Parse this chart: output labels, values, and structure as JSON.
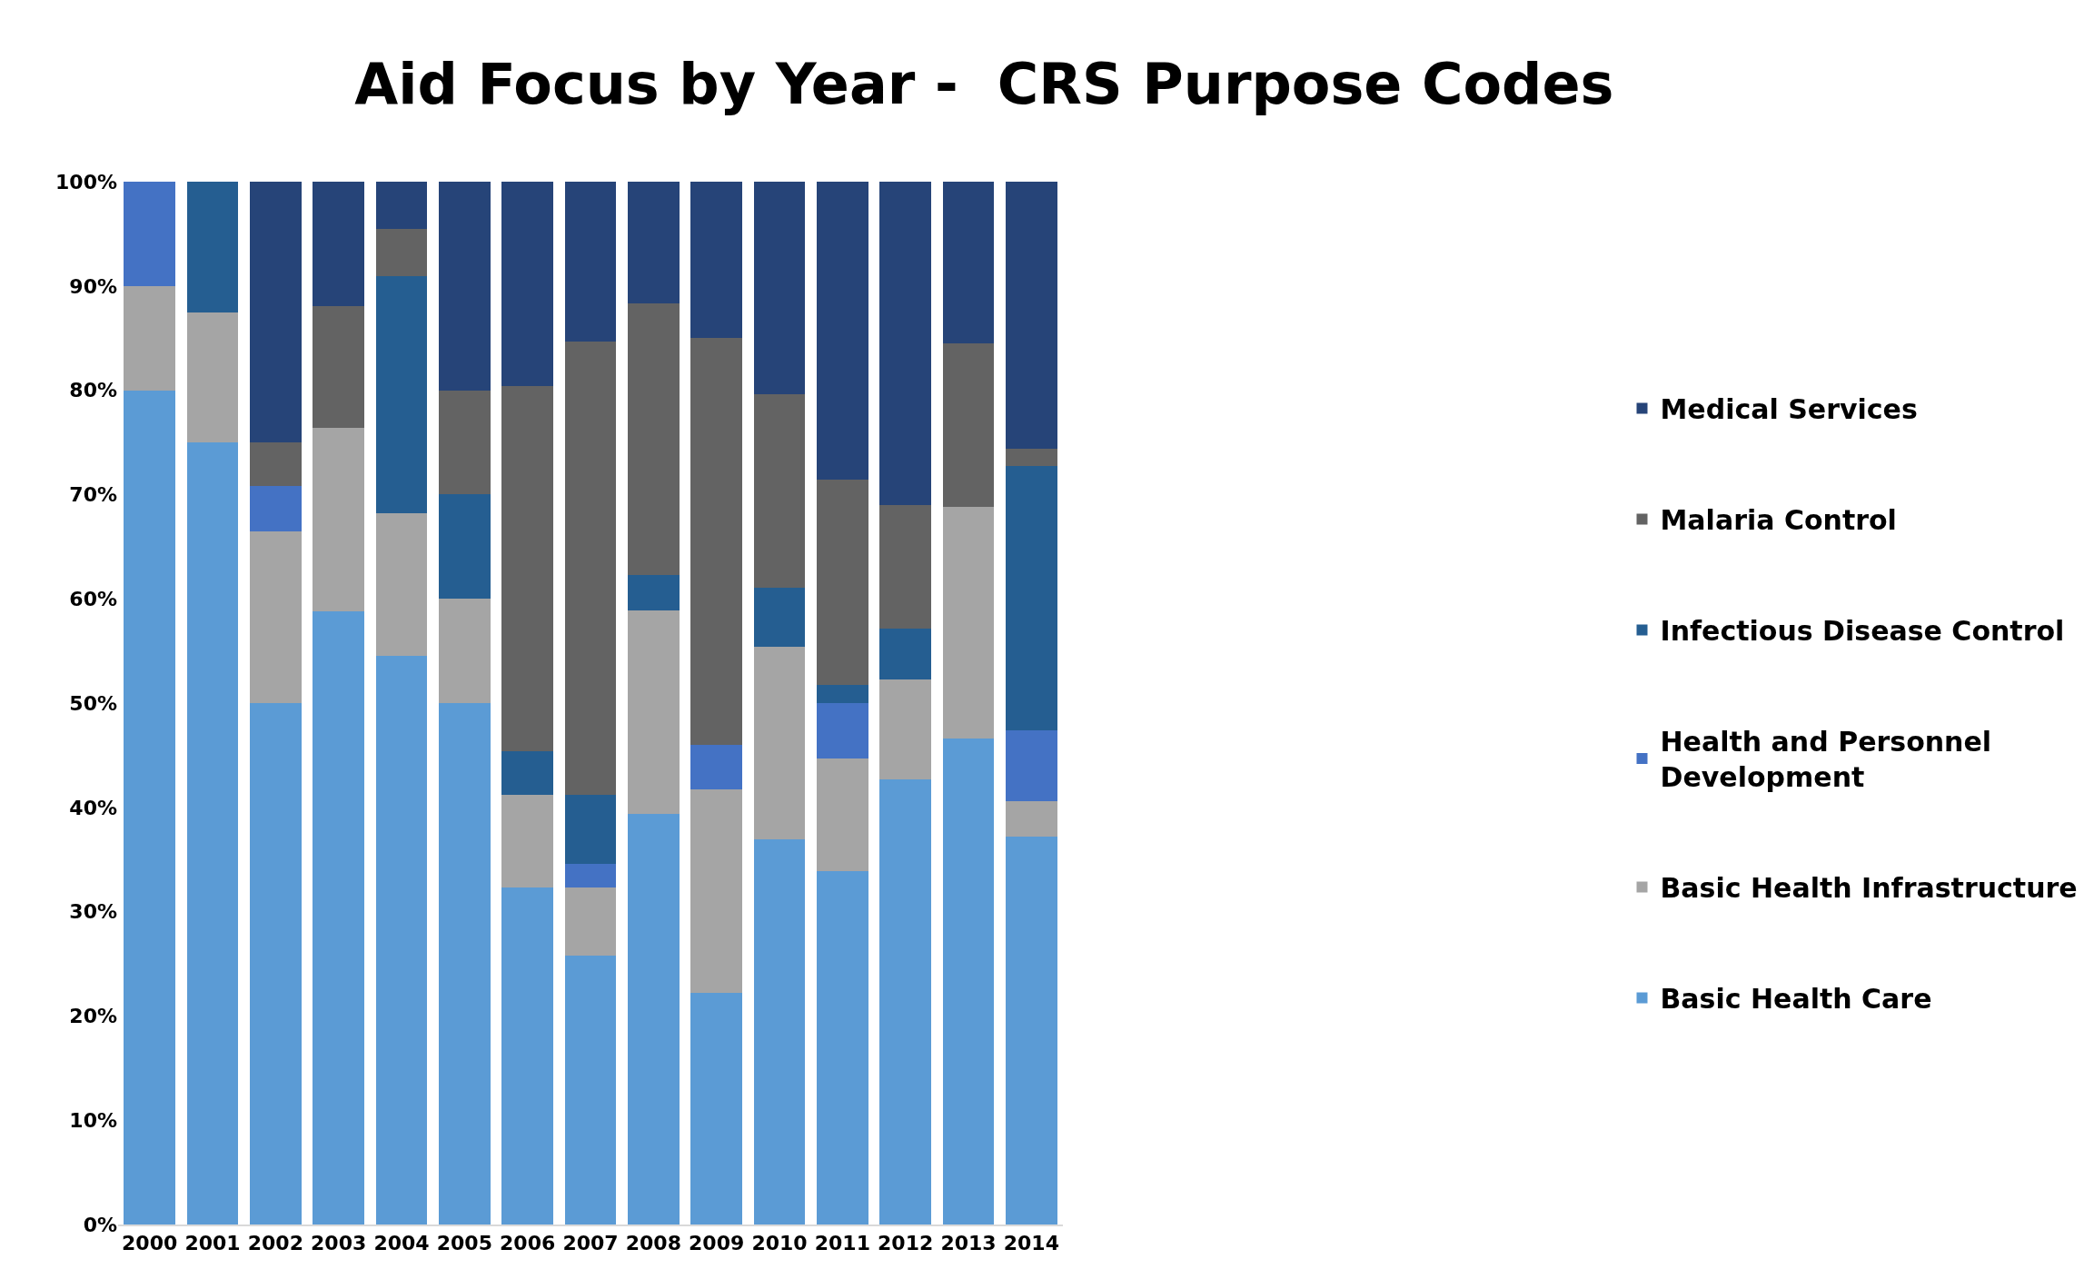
{
  "chart_data": {
    "type": "bar",
    "stacked": true,
    "title": "Aid Focus by Year -  CRS Purpose Codes",
    "categories": [
      "2000",
      "2001",
      "2002",
      "2003",
      "2004",
      "2005",
      "2006",
      "2007",
      "2008",
      "2009",
      "2010",
      "2011",
      "2012",
      "2013",
      "2014"
    ],
    "series": [
      {
        "name": "Basic Health Care",
        "color": "#5b9bd5",
        "values": [
          80,
          75,
          50,
          58.8,
          54.5,
          50,
          32.3,
          25.8,
          39.4,
          22.2,
          36.9,
          33.9,
          42.7,
          46.6,
          37.2
        ]
      },
      {
        "name": "Basic Health Infrastructure",
        "color": "#a5a5a5",
        "values": [
          10,
          12.5,
          16.5,
          17.6,
          13.7,
          10,
          8.9,
          6.5,
          19.5,
          19.5,
          18.5,
          10.8,
          9.6,
          22.2,
          3.4
        ]
      },
      {
        "name": "Health and Personnel Development",
        "color": "#4472c4",
        "values": [
          10,
          null,
          4.3,
          null,
          null,
          null,
          null,
          2.3,
          null,
          4.3,
          null,
          5.3,
          null,
          null,
          6.8
        ]
      },
      {
        "name": "Infectious Disease Control",
        "color": "#255e91",
        "values": [
          null,
          12.5,
          null,
          null,
          22.7,
          10,
          4.2,
          6.6,
          3.4,
          null,
          5.7,
          1.7,
          4.8,
          null,
          25.3
        ]
      },
      {
        "name": "Malaria Control",
        "color": "#636363",
        "values": [
          null,
          null,
          4.2,
          11.7,
          4.6,
          10,
          35,
          43.5,
          26,
          39,
          18.5,
          19.7,
          11.9,
          15.7,
          1.7
        ]
      },
      {
        "name": "Medical Services",
        "color": "#264478",
        "values": [
          null,
          null,
          25,
          11.9,
          4.5,
          20,
          19.6,
          15.3,
          11.7,
          15,
          20.4,
          28.6,
          31,
          15.5,
          25.6
        ]
      }
    ],
    "ylim": [
      0,
      100
    ],
    "yticks": [
      {
        "value": 0,
        "label": "0%"
      },
      {
        "value": 10,
        "label": "10%"
      },
      {
        "value": 20,
        "label": "20%"
      },
      {
        "value": 30,
        "label": "30%"
      },
      {
        "value": 40,
        "label": "40%"
      },
      {
        "value": 50,
        "label": "50%"
      },
      {
        "value": 60,
        "label": "60%"
      },
      {
        "value": 70,
        "label": "70%"
      },
      {
        "value": 80,
        "label": "80%"
      },
      {
        "value": 90,
        "label": "90%"
      },
      {
        "value": 100,
        "label": "100%"
      }
    ],
    "legend": "right"
  }
}
